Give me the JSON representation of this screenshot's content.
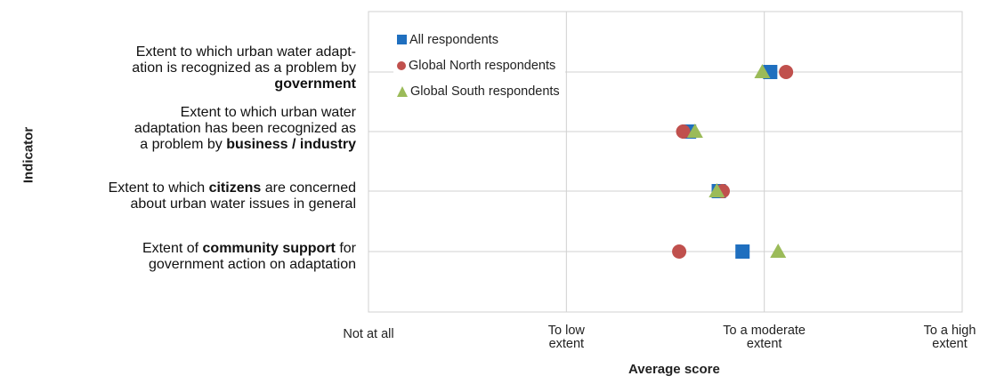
{
  "chart_data": {
    "type": "scatter",
    "xlabel": "Average score",
    "ylabel": "Indicator",
    "xlim": [
      1,
      4
    ],
    "x_ticks": [
      {
        "value": 1,
        "lines": [
          "Not at all"
        ]
      },
      {
        "value": 2,
        "lines": [
          "To low",
          "extent"
        ]
      },
      {
        "value": 3,
        "lines": [
          "To a moderate",
          "extent"
        ]
      },
      {
        "value": 4,
        "lines": [
          "To a high",
          "extent"
        ]
      }
    ],
    "categories": [
      {
        "id": "government",
        "lines": [
          [
            {
              "t": "Extent to which urban water adapt-",
              "b": false
            }
          ],
          [
            {
              "t": "ation is recognized as a problem by",
              "b": false
            }
          ],
          [
            {
              "t": "government",
              "b": true
            }
          ]
        ]
      },
      {
        "id": "business",
        "lines": [
          [
            {
              "t": "Extent to which urban water",
              "b": false
            }
          ],
          [
            {
              "t": "adaptation has been recognized as",
              "b": false
            }
          ],
          [
            {
              "t": "a problem by ",
              "b": false
            },
            {
              "t": "business / industry",
              "b": true
            }
          ]
        ]
      },
      {
        "id": "citizens",
        "lines": [
          [
            {
              "t": "Extent to which ",
              "b": false
            },
            {
              "t": "citizens",
              "b": true
            },
            {
              "t": " are concerned",
              "b": false
            }
          ],
          [
            {
              "t": "about urban water issues in general",
              "b": false
            }
          ]
        ]
      },
      {
        "id": "community",
        "lines": [
          [
            {
              "t": "Extent of ",
              "b": false
            },
            {
              "t": "community support",
              "b": true
            },
            {
              "t": " for",
              "b": false
            }
          ],
          [
            {
              "t": "government action on adaptation",
              "b": false
            }
          ]
        ]
      }
    ],
    "series": [
      {
        "name": "All respondents",
        "marker": "square",
        "color": "#1f6fbf",
        "values": [
          3.03,
          2.62,
          2.77,
          2.89
        ]
      },
      {
        "name": "Global North respondents",
        "marker": "circle",
        "color": "#c0504d",
        "values": [
          3.11,
          2.59,
          2.79,
          2.57
        ]
      },
      {
        "name": "Global South respondents",
        "marker": "triangle",
        "color": "#9bbb59",
        "values": [
          2.99,
          2.65,
          2.76,
          3.07
        ]
      }
    ],
    "grid": true,
    "legend_position": "top-left inside plot"
  }
}
